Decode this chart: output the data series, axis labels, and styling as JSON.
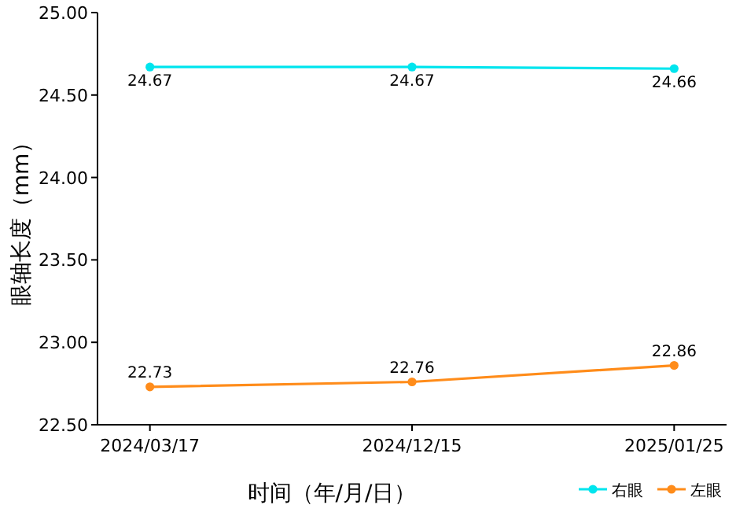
{
  "chart_data": {
    "type": "line",
    "xlabel": "时间（年/月/日）",
    "ylabel": "眼轴长度（mm）",
    "categories": [
      "2024/03/17",
      "2024/12/15",
      "2025/01/25"
    ],
    "series": [
      {
        "name": "右眼",
        "color": "#00e5ee",
        "values": [
          24.67,
          24.67,
          24.66
        ]
      },
      {
        "name": "左眼",
        "color": "#ff8c1a",
        "values": [
          22.73,
          22.76,
          22.86
        ]
      }
    ],
    "ylim": [
      22.5,
      25
    ],
    "yticks": [
      {
        "value": 22.5,
        "label": "22.50"
      },
      {
        "value": 23,
        "label": "23.00"
      },
      {
        "value": 23.5,
        "label": "23.50"
      },
      {
        "value": 24,
        "label": "24.00"
      },
      {
        "value": 24.5,
        "label": "24.50"
      },
      {
        "value": 25,
        "label": "25.00"
      }
    ],
    "data_labels": true,
    "marker": "circle",
    "legend": "bottom right",
    "grid": false
  }
}
